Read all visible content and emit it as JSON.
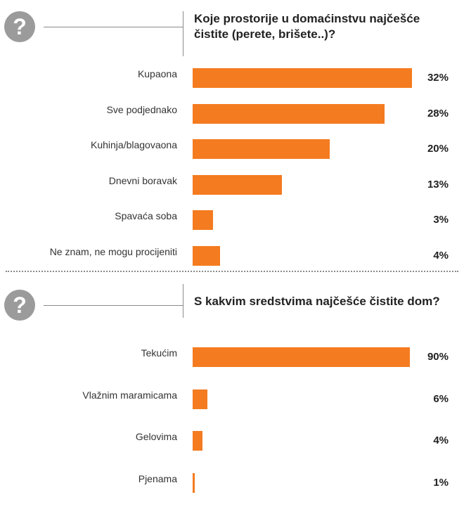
{
  "icon": "question-mark-icon",
  "accent_color": "#f47b20",
  "chart_data": [
    {
      "type": "bar",
      "title": "Koje prostorije u domaćinstvu najčešće čistite (perete, brišete..)?",
      "categories": [
        "Kupaona",
        "Sve podjednako",
        "Kuhinja/blagovaona",
        "Dnevni boravak",
        "Spavaća soba",
        "Ne znam, ne mogu procijeniti"
      ],
      "values": [
        32,
        28,
        20,
        13,
        3,
        4
      ],
      "value_labels": [
        "32%",
        "28%",
        "20%",
        "13%",
        "3%",
        "4%"
      ],
      "xlim": [
        0,
        32
      ],
      "orientation": "horizontal"
    },
    {
      "type": "bar",
      "title": "S kakvim sredstvima najčešće čistite dom?",
      "categories": [
        "Tekućim",
        "Vlažnim maramicama",
        "Gelovima",
        "Pjenama"
      ],
      "values": [
        90,
        6,
        4,
        1
      ],
      "value_labels": [
        "90%",
        "6%",
        "4%",
        "1%"
      ],
      "xlim": [
        0,
        90
      ],
      "orientation": "horizontal"
    }
  ]
}
